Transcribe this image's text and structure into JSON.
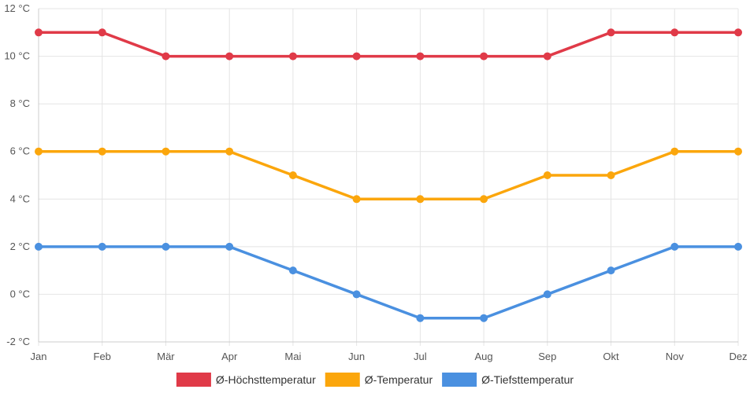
{
  "chart_data": {
    "type": "line",
    "categories": [
      "Jan",
      "Feb",
      "Mär",
      "Apr",
      "Mai",
      "Jun",
      "Jul",
      "Aug",
      "Sep",
      "Okt",
      "Nov",
      "Dez"
    ],
    "y_ticks": [
      "-2 °C",
      "0 °C",
      "2 °C",
      "4 °C",
      "6 °C",
      "8 °C",
      "10 °C",
      "12 °C"
    ],
    "ylim": [
      -2,
      12
    ],
    "grid": true,
    "legend_position": "bottom",
    "series": [
      {
        "name": "Ø-Höchsttemperatur",
        "color": "#e03a48",
        "values": [
          11,
          11,
          10,
          10,
          10,
          10,
          10,
          10,
          10,
          11,
          11,
          11
        ]
      },
      {
        "name": "Ø-Temperatur",
        "color": "#fba60c",
        "values": [
          6,
          6,
          6,
          6,
          5,
          4,
          4,
          4,
          5,
          5,
          6,
          6
        ]
      },
      {
        "name": "Ø-Tiefsttemperatur",
        "color": "#4a90e0",
        "values": [
          2,
          2,
          2,
          2,
          1,
          0,
          -1,
          -1,
          0,
          1,
          2,
          2
        ]
      }
    ]
  }
}
